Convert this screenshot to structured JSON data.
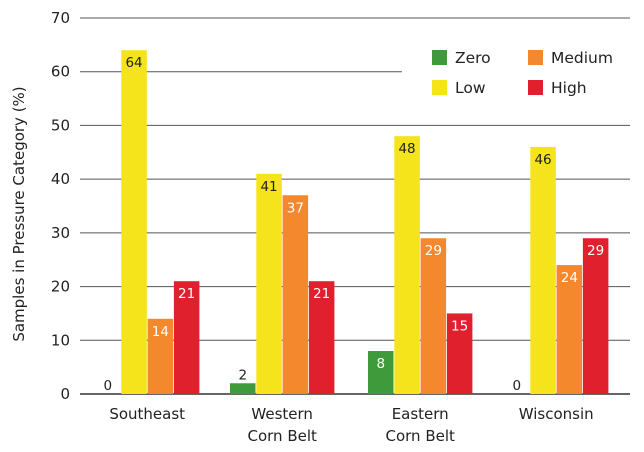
{
  "chart_data": {
    "type": "bar",
    "title": "",
    "xlabel": "",
    "ylabel": "Samples in Pressure Category (%)",
    "ylim": [
      0,
      70
    ],
    "yticks": [
      0,
      10,
      20,
      30,
      40,
      50,
      60,
      70
    ],
    "grid": true,
    "legend_position": "top-right",
    "categories": [
      [
        "Southeast"
      ],
      [
        "Western",
        "Corn Belt"
      ],
      [
        "Eastern",
        "Corn Belt"
      ],
      [
        "Wisconsin"
      ]
    ],
    "series": [
      {
        "name": "Zero",
        "color": "#3f9a3c",
        "values": [
          0,
          2,
          8,
          0
        ]
      },
      {
        "name": "Low",
        "color": "#f5e31b",
        "values": [
          64,
          41,
          48,
          46
        ]
      },
      {
        "name": "Medium",
        "color": "#f4882c",
        "values": [
          14,
          37,
          29,
          24
        ]
      },
      {
        "name": "High",
        "color": "#e0202d",
        "values": [
          21,
          21,
          15,
          29
        ]
      }
    ],
    "data_labels": [
      [
        "0",
        "64",
        "14",
        "21"
      ],
      [
        "2",
        "41",
        "37",
        "21"
      ],
      [
        "8",
        "48",
        "29",
        "15"
      ],
      [
        "0",
        "46",
        "24",
        "29"
      ]
    ]
  }
}
